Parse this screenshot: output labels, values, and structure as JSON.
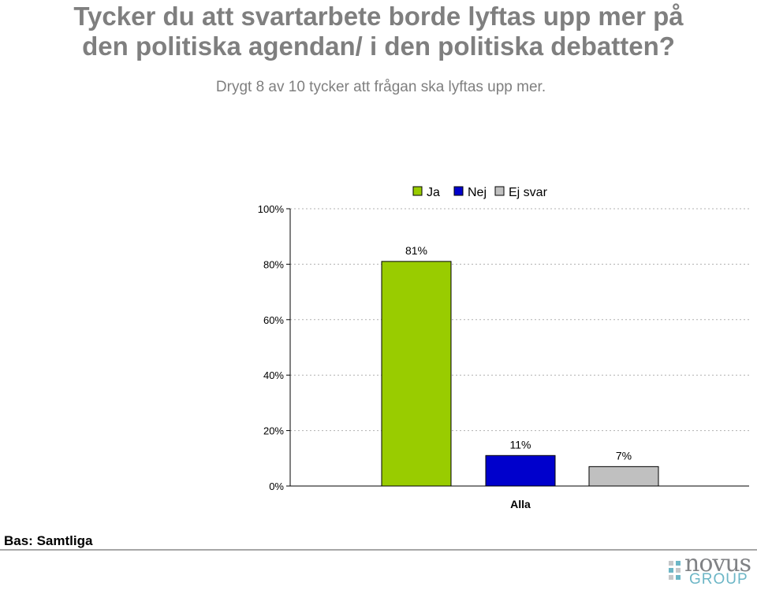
{
  "title_line1": "Tycker du att svartarbete borde lyftas upp mer på",
  "title_line2": "den politiska agendan/ i den politiska debatten?",
  "subtitle": "Drygt 8 av 10 tycker att frågan ska lyftas upp mer.",
  "footer": "Bas: Samtliga",
  "logo": {
    "word": "novus",
    "group": "GROUP"
  },
  "colors": {
    "ja": "#99cc00",
    "nej": "#0000cc",
    "ej_svar": "#c0c0c0",
    "title": "#7f7f7f"
  },
  "chart_data": {
    "type": "bar",
    "categories": [
      "Alla"
    ],
    "series": [
      {
        "name": "Ja",
        "values": [
          81
        ],
        "label": "81%"
      },
      {
        "name": "Nej",
        "values": [
          11
        ],
        "label": "11%"
      },
      {
        "name": "Ej svar",
        "values": [
          7
        ],
        "label": "7%"
      }
    ],
    "ylim": [
      0,
      100
    ],
    "yticks": [
      "0%",
      "20%",
      "40%",
      "60%",
      "80%",
      "100%"
    ],
    "legend": "top",
    "grid": true
  }
}
